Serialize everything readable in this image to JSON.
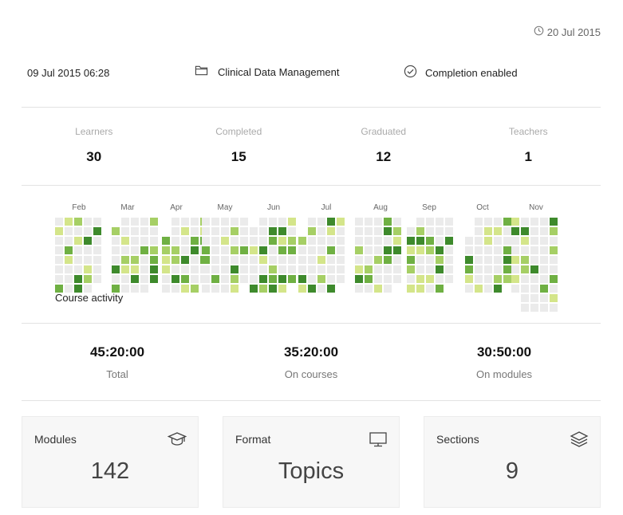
{
  "header": {
    "date": "20 Jul 2015",
    "created": "09 Jul 2015 06:28",
    "category": "Clinical Data Management",
    "completion": "Completion enabled"
  },
  "stats": [
    {
      "label": "Learners",
      "value": "30"
    },
    {
      "label": "Completed",
      "value": "15"
    },
    {
      "label": "Graduated",
      "value": "12"
    },
    {
      "label": "Teachers",
      "value": "1"
    }
  ],
  "activity": {
    "caption": "Course activity",
    "months": [
      "Feb",
      "Mar",
      "Apr",
      "May",
      "Jun",
      "Jul",
      "Aug",
      "Sep",
      "Oct",
      "Nov"
    ],
    "colors": [
      "#ebebeb",
      "#d4e58a",
      "#a6cf65",
      "#6fb043",
      "#3e8a2c"
    ]
  },
  "times": [
    {
      "value": "45:20:00",
      "label": "Total"
    },
    {
      "value": "35:20:00",
      "label": "On courses"
    },
    {
      "value": "30:50:00",
      "label": "On modules"
    }
  ],
  "cards": [
    {
      "title": "Modules",
      "value": "142",
      "icon": "graduation-cap-icon"
    },
    {
      "title": "Format",
      "value": "Topics",
      "icon": "monitor-icon"
    },
    {
      "title": "Sections",
      "value": "9",
      "icon": "layers-icon"
    }
  ]
}
